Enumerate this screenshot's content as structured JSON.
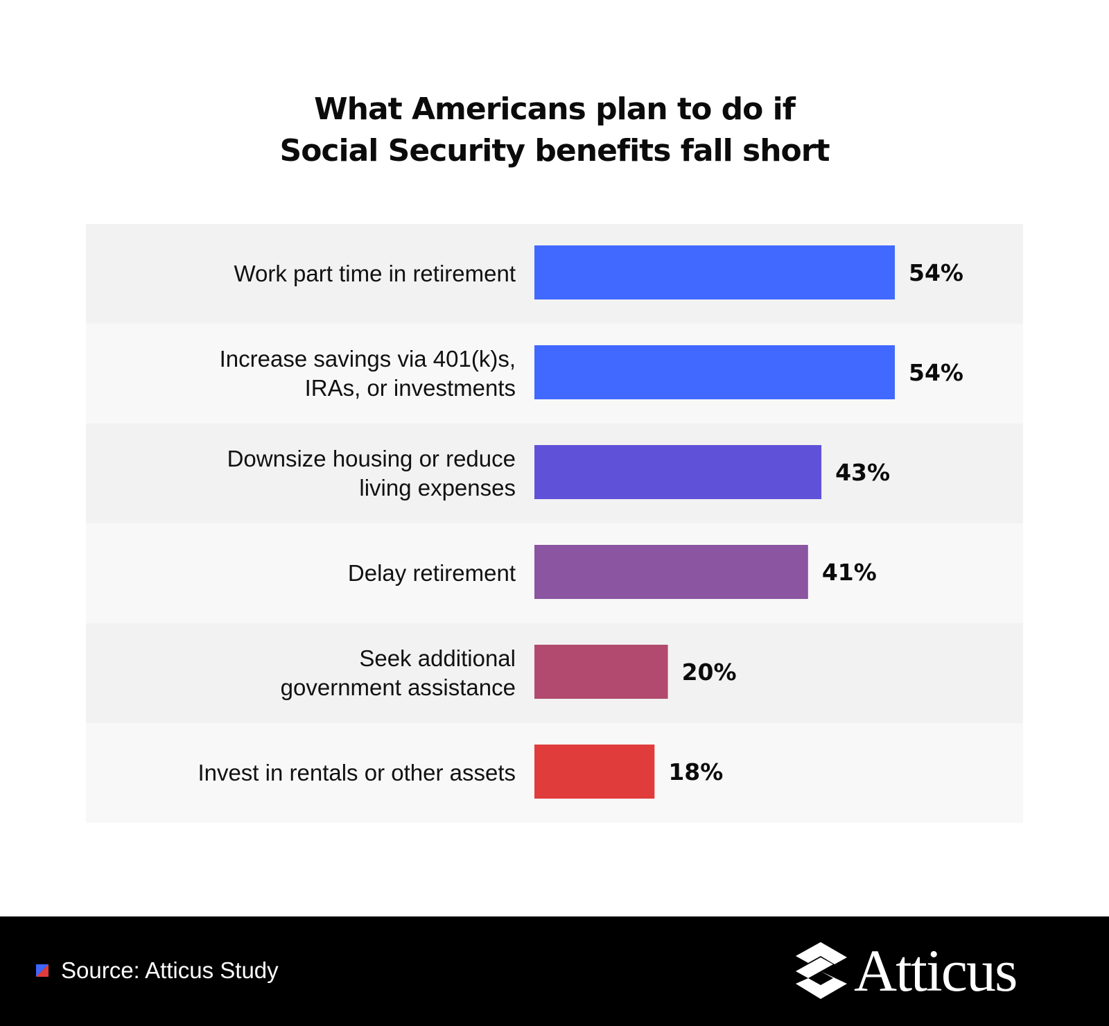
{
  "colors": {
    "background": "#ffffff",
    "row_band_dark": "#f2f2f2",
    "row_band_light": "#f8f8f8",
    "footer": "#000000",
    "source_icon_blue": "#3f66ff",
    "source_icon_red": "#e03c3c"
  },
  "chart_data": {
    "type": "bar",
    "orientation": "horizontal",
    "title": "What Americans plan to do if Social Security benefits fall short",
    "title_lines": [
      "What Americans plan to do if",
      "Social Security benefits fall short"
    ],
    "xlabel": "",
    "ylabel": "",
    "xlim": [
      0,
      60
    ],
    "grid": false,
    "value_suffix": "%",
    "categories": [
      {
        "label": "Work part time in retirement",
        "label_lines": [
          "Work part time in retirement"
        ],
        "value": 54,
        "value_label": "54%",
        "color": "#4169ff"
      },
      {
        "label": "Increase savings via 401(k)s, IRAs, or investments",
        "label_lines": [
          "Increase savings via 401(k)s,",
          "IRAs, or investments"
        ],
        "value": 54,
        "value_label": "54%",
        "color": "#4169ff"
      },
      {
        "label": "Downsize housing or reduce living expenses",
        "label_lines": [
          "Downsize housing or reduce",
          "living expenses"
        ],
        "value": 43,
        "value_label": "43%",
        "color": "#6052d8"
      },
      {
        "label": "Delay retirement",
        "label_lines": [
          "Delay retirement"
        ],
        "value": 41,
        "value_label": "41%",
        "color": "#8b55a1"
      },
      {
        "label": "Seek additional government assistance",
        "label_lines": [
          "Seek additional",
          "government assistance"
        ],
        "value": 20,
        "value_label": "20%",
        "color": "#b14a6e"
      },
      {
        "label": "Invest in rentals or other assets",
        "label_lines": [
          "Invest in rentals or other assets"
        ],
        "value": 18,
        "value_label": "18%",
        "color": "#e03c3c"
      }
    ]
  },
  "footer": {
    "source": "Source: Atticus Study",
    "brand_name": "Atticus",
    "brand_icon": "atticus-logo-mark",
    "source_icon": "split-square-icon"
  }
}
